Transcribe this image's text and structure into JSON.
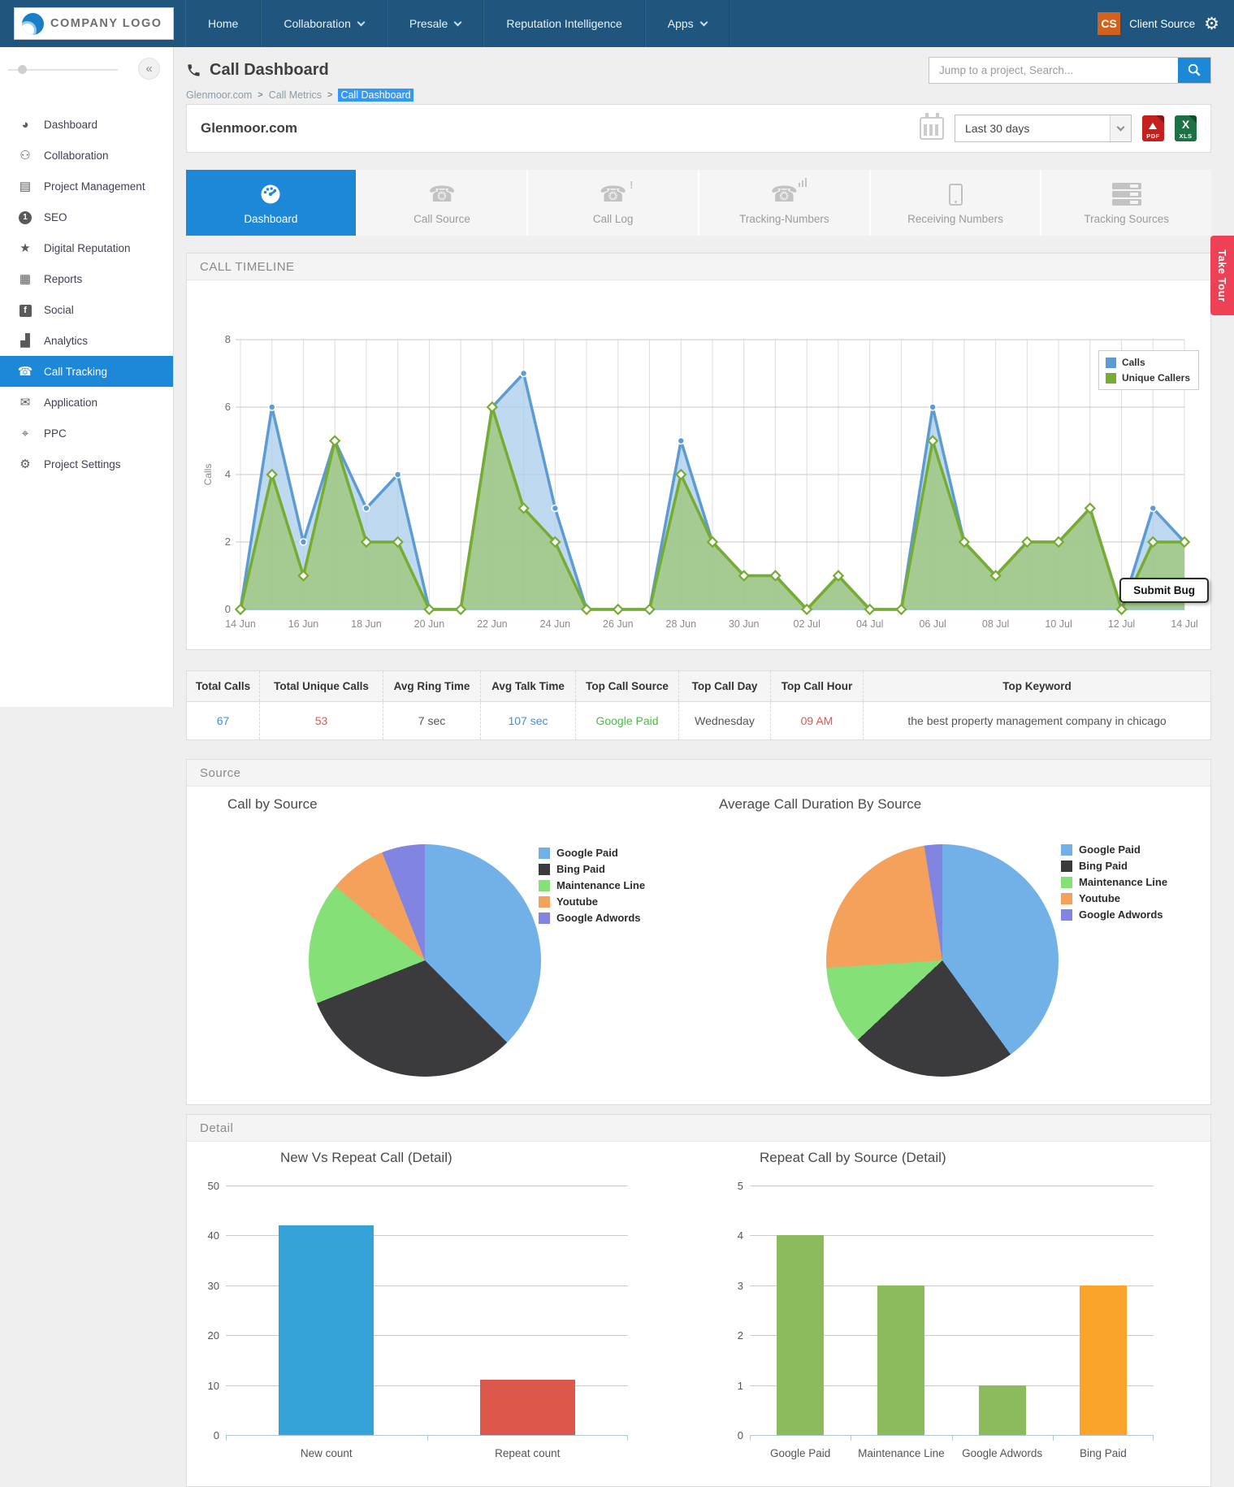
{
  "navbar": {
    "logo_text": "COMPANY LOGO",
    "items": [
      {
        "label": "Home",
        "dropdown": false
      },
      {
        "label": "Collaboration",
        "dropdown": true
      },
      {
        "label": "Presale",
        "dropdown": true
      },
      {
        "label": "Reputation Intelligence",
        "dropdown": false
      },
      {
        "label": "Apps",
        "dropdown": true
      }
    ],
    "account": {
      "badge": "CS",
      "name": "Client Source"
    }
  },
  "sidebar": {
    "items": [
      {
        "label": "Dashboard",
        "icon": "dashboard-icon",
        "active": false
      },
      {
        "label": "Collaboration",
        "icon": "collaboration-icon",
        "active": false
      },
      {
        "label": "Project Management",
        "icon": "project-management-icon",
        "active": false
      },
      {
        "label": "SEO",
        "icon": "seo-icon",
        "active": false
      },
      {
        "label": "Digital Reputation",
        "icon": "digital-reputation-icon",
        "active": false
      },
      {
        "label": "Reports",
        "icon": "reports-icon",
        "active": false
      },
      {
        "label": "Social",
        "icon": "social-icon",
        "active": false
      },
      {
        "label": "Analytics",
        "icon": "analytics-icon",
        "active": false
      },
      {
        "label": "Call Tracking",
        "icon": "call-tracking-icon",
        "active": true
      },
      {
        "label": "Application",
        "icon": "application-icon",
        "active": false
      },
      {
        "label": "PPC",
        "icon": "ppc-icon",
        "active": false
      },
      {
        "label": "Project Settings",
        "icon": "project-settings-icon",
        "active": false
      }
    ]
  },
  "header": {
    "page_title": "Call Dashboard",
    "breadcrumb": [
      "Glenmoor.com",
      "Call Metrics",
      "Call Dashboard"
    ],
    "search_placeholder": "Jump to a project, Search..."
  },
  "project_bar": {
    "title": "Glenmoor.com",
    "range_value": "Last 30 days",
    "exports": [
      "PDF",
      "XLS"
    ]
  },
  "tabs": [
    {
      "label": "Dashboard",
      "icon": "gauge-icon",
      "active": true
    },
    {
      "label": "Call Source",
      "icon": "phone-icon",
      "active": false
    },
    {
      "label": "Call Log",
      "icon": "phone-alert-icon",
      "active": false
    },
    {
      "label": "Tracking-Numbers",
      "icon": "phone-signal-icon",
      "active": false
    },
    {
      "label": "Receiving Numbers",
      "icon": "smartphone-icon",
      "active": false
    },
    {
      "label": "Tracking Sources",
      "icon": "list-bars-icon",
      "active": false
    }
  ],
  "take_tour_label": "Take Tour",
  "submit_bug_label": "Submit Bug",
  "timeline_section": {
    "title": "CALL TIMELINE"
  },
  "stats": {
    "headers": [
      "Total Calls",
      "Total Unique Calls",
      "Avg Ring Time",
      "Avg Talk Time",
      "Top Call Source",
      "Top Call Day",
      "Top Call Hour",
      "Top Keyword"
    ],
    "values": [
      {
        "text": "67",
        "color": "#3E8EDE"
      },
      {
        "text": "53",
        "color": "#E2574C"
      },
      {
        "text": "7 sec",
        "color": "#555555"
      },
      {
        "text": "107 sec",
        "color": "#3E8EDE"
      },
      {
        "text": "Google Paid",
        "color": "#3FC23F"
      },
      {
        "text": "Wednesday",
        "color": "#555555"
      },
      {
        "text": "09 AM",
        "color": "#E2574C"
      },
      {
        "text": "the best property management company in chicago",
        "color": "#555555"
      }
    ]
  },
  "source_section": {
    "title": "Source",
    "left_title": "Call by Source",
    "right_title": "Average Call Duration By Source"
  },
  "detail_section": {
    "title": "Detail",
    "left_title": "New Vs Repeat Call (Detail)",
    "right_title": "Repeat Call by Source (Detail)"
  },
  "chart_data": [
    {
      "type": "area",
      "title": "CALL TIMELINE",
      "ylabel": "Calls",
      "ylim": [
        0,
        8
      ],
      "yticks": [
        0,
        2,
        4,
        6,
        8
      ],
      "grid": true,
      "legend_position": "top-right",
      "x": [
        "14 Jun",
        "15 Jun",
        "16 Jun",
        "17 Jun",
        "18 Jun",
        "19 Jun",
        "20 Jun",
        "21 Jun",
        "22 Jun",
        "23 Jun",
        "24 Jun",
        "25 Jun",
        "26 Jun",
        "27 Jun",
        "28 Jun",
        "29 Jun",
        "30 Jun",
        "01 Jul",
        "02 Jul",
        "03 Jul",
        "04 Jul",
        "05 Jul",
        "06 Jul",
        "07 Jul",
        "08 Jul",
        "09 Jul",
        "10 Jul",
        "11 Jul",
        "12 Jul",
        "13 Jul",
        "14 Jul"
      ],
      "x_tick_every": 2,
      "series": [
        {
          "name": "Calls",
          "color": "#5D9CD3",
          "fill": "#A9CCEC",
          "marker": "circle",
          "values": [
            0,
            6,
            2,
            5,
            3,
            4,
            0,
            0,
            6,
            7,
            3,
            0,
            0,
            0,
            5,
            2,
            1,
            1,
            0,
            1,
            0,
            0,
            6,
            2,
            1,
            2,
            2,
            3,
            0,
            3,
            2
          ]
        },
        {
          "name": "Unique Callers",
          "color": "#76AC31",
          "fill": "#9CC673",
          "marker": "diamond",
          "values": [
            0,
            4,
            1,
            5,
            2,
            2,
            0,
            0,
            6,
            3,
            2,
            0,
            0,
            0,
            4,
            2,
            1,
            1,
            0,
            1,
            0,
            0,
            5,
            2,
            1,
            2,
            2,
            3,
            0,
            2,
            2
          ]
        }
      ]
    },
    {
      "type": "pie",
      "title": "Call by Source",
      "labels": [
        "Google Paid",
        "Bing Paid",
        "Maintenance Line",
        "Youtube",
        "Google Adwords"
      ],
      "values_percent": [
        37.5,
        31.5,
        17,
        8,
        6
      ],
      "colors": [
        "#72B1E8",
        "#3B3B3D",
        "#85E077",
        "#F4A25B",
        "#8184E0"
      ]
    },
    {
      "type": "pie",
      "title": "Average Call Duration By Source",
      "labels": [
        "Google Paid",
        "Bing Paid",
        "Maintenance Line",
        "Youtube",
        "Google Adwords"
      ],
      "values_percent": [
        40,
        23,
        11,
        23.5,
        2.5
      ],
      "colors": [
        "#72B1E8",
        "#3B3B3D",
        "#85E077",
        "#F4A25B",
        "#8184E0"
      ]
    },
    {
      "type": "bar",
      "title": "New Vs Repeat Call (Detail)",
      "categories": [
        "New count",
        "Repeat count"
      ],
      "values": [
        42,
        11
      ],
      "colors": [
        "#35A2D8",
        "#DC584A"
      ],
      "ylim": [
        0,
        50
      ],
      "ytick_step": 10
    },
    {
      "type": "bar",
      "title": "Repeat Call by Source (Detail)",
      "categories": [
        "Google Paid",
        "Maintenance Line",
        "Google Adwords",
        "Bing Paid"
      ],
      "values": [
        4,
        3,
        1,
        3
      ],
      "colors": [
        "#8CBB5E",
        "#8CBB5E",
        "#8CBB5E",
        "#FBA42B"
      ],
      "ylim": [
        0,
        5
      ],
      "ytick_step": 1
    }
  ]
}
